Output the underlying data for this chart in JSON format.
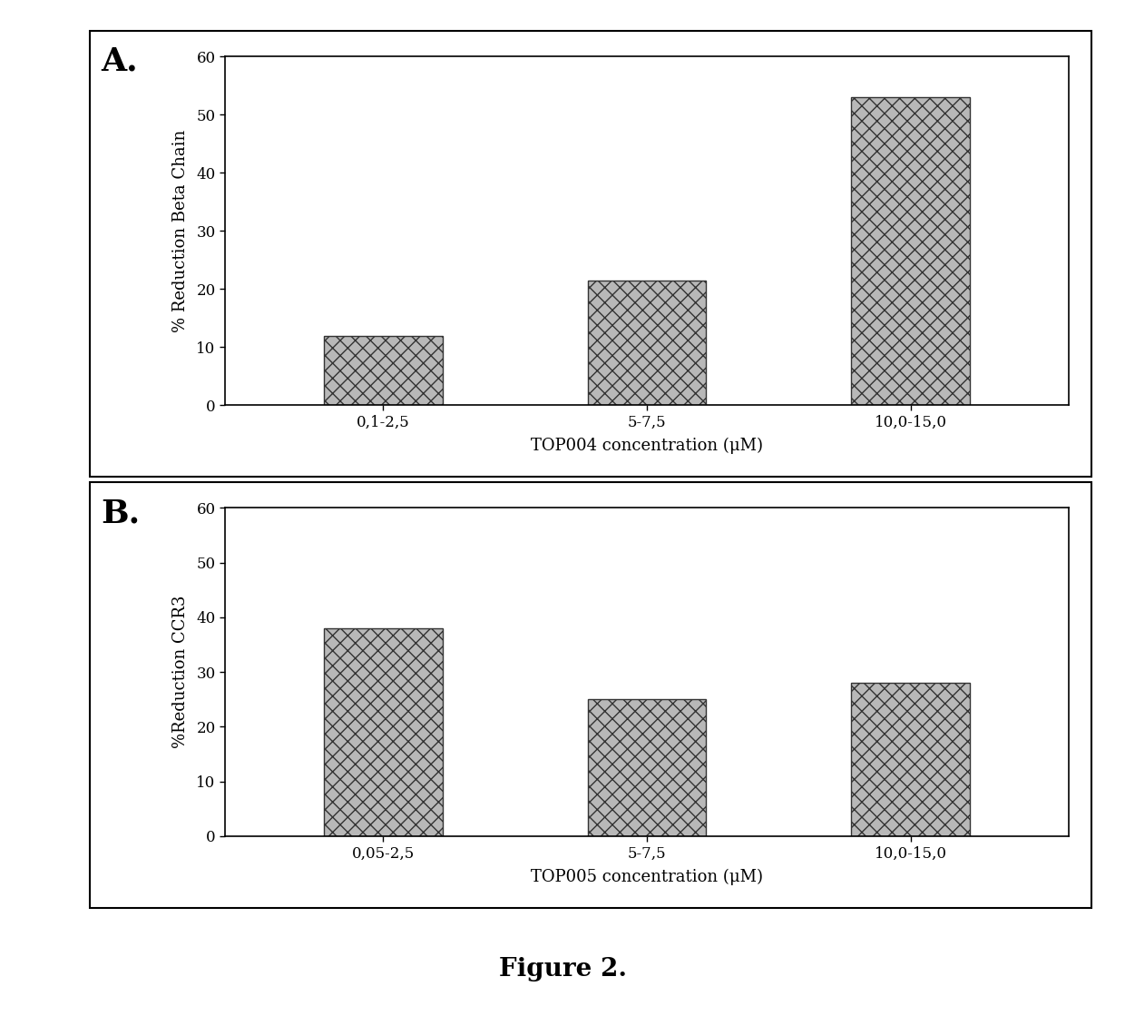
{
  "panel_A": {
    "categories": [
      "0,1-2,5",
      "5-7,5",
      "10,0-15,0"
    ],
    "values": [
      12,
      21.5,
      53
    ],
    "ylabel": "% Reduction Beta Chain",
    "xlabel": "TOP004 concentration (μM)",
    "ylim": [
      0,
      60
    ],
    "yticks": [
      0,
      10,
      20,
      30,
      40,
      50,
      60
    ],
    "label": "A."
  },
  "panel_B": {
    "categories": [
      "0,05-2,5",
      "5-7,5",
      "10,0-15,0"
    ],
    "values": [
      38,
      25,
      28
    ],
    "ylabel": "%Reduction CCR3",
    "xlabel": "TOP005 concentration (μM)",
    "ylim": [
      0,
      60
    ],
    "yticks": [
      0,
      10,
      20,
      30,
      40,
      50,
      60
    ],
    "label": "B."
  },
  "figure_label": "Figure 2.",
  "bar_hatch": "xx",
  "bar_facecolor": "#b8b8b8",
  "bar_edgecolor": "#333333",
  "background_color": "#ffffff",
  "figure_bg": "#ffffff",
  "border_color": "#000000",
  "fontsize_panel_label": 26,
  "fontsize_axis_label": 13,
  "fontsize_tick": 12,
  "fontsize_figure_label": 20,
  "bar_width": 0.45,
  "outer_border_lw": 1.5
}
